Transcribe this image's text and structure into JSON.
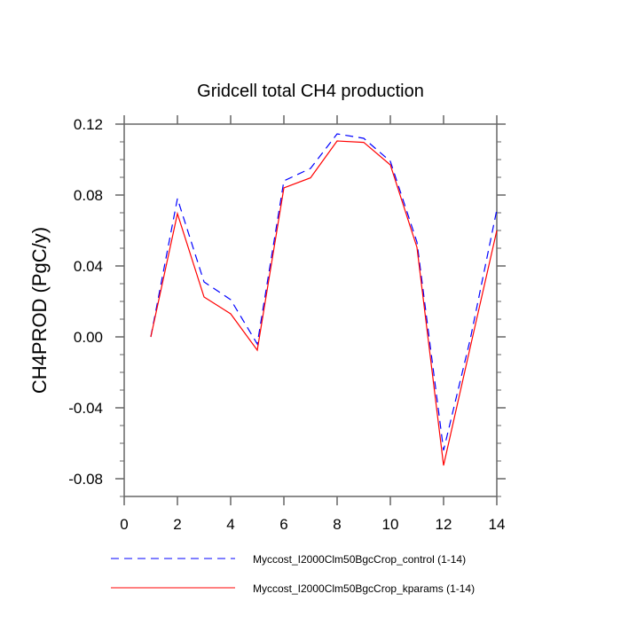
{
  "chart_data": {
    "type": "line",
    "title": "Gridcell total CH4 production",
    "xlabel": "",
    "ylabel": "CH4PROD  (PgC/y)",
    "xlim": [
      0,
      14
    ],
    "ylim": [
      -0.09,
      0.12
    ],
    "xticks": [
      "0",
      "2",
      "4",
      "6",
      "8",
      "10",
      "12",
      "14"
    ],
    "yticks": [
      "-0.08",
      "-0.04",
      "0.00",
      "0.04",
      "0.08",
      "0.12"
    ],
    "grid": false,
    "legend_position": "bottom",
    "x": [
      1,
      2,
      3,
      4,
      5,
      6,
      7,
      8,
      9,
      10,
      11,
      12,
      13,
      14
    ],
    "series": [
      {
        "name": "Myccost_I2000Clm50BgcCrop_control (1-14)",
        "color": "#0000ff",
        "dash": "dashed",
        "values": [
          0.0,
          0.078,
          0.031,
          0.021,
          -0.004,
          0.088,
          0.095,
          0.1145,
          0.112,
          0.099,
          0.0535,
          -0.064,
          -0.0015,
          0.0717
        ]
      },
      {
        "name": "Myccost_I2000Clm50BgcCrop_kparams (1-14)",
        "color": "#ff0000",
        "dash": "solid",
        "values": [
          0.0,
          0.0695,
          0.0225,
          0.013,
          -0.0075,
          0.084,
          0.0897,
          0.1105,
          0.1097,
          0.097,
          0.0505,
          -0.0725,
          -0.006,
          0.06
        ]
      }
    ]
  }
}
